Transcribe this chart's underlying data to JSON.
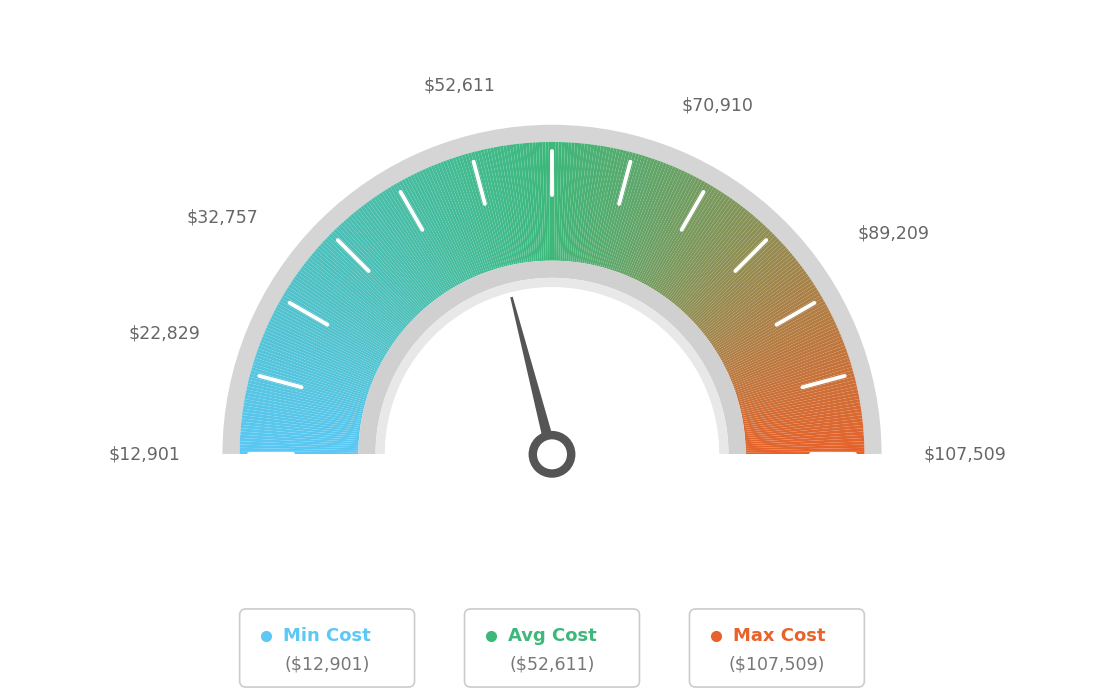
{
  "min_value": 12901,
  "max_value": 107509,
  "avg_value": 52611,
  "labels": [
    "$12,901",
    "$22,829",
    "$32,757",
    "$52,611",
    "$70,910",
    "$89,209",
    "$107,509"
  ],
  "label_values": [
    12901,
    22829,
    32757,
    52611,
    70910,
    89209,
    107509
  ],
  "min_cost_label": "Min Cost",
  "avg_cost_label": "Avg Cost",
  "max_cost_label": "Max Cost",
  "min_cost_value": "($12,901)",
  "avg_cost_value": "($52,611)",
  "max_cost_value": "($107,509)",
  "min_color": "#5bc8f5",
  "avg_color": "#3db87a",
  "max_color": "#e8622a",
  "background_color": "#ffffff",
  "needle_color": "#555555",
  "label_color": "#666666",
  "n_ticks": 13
}
